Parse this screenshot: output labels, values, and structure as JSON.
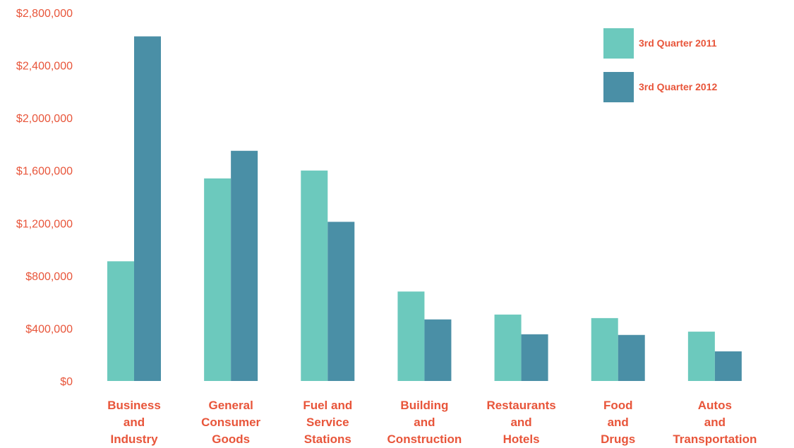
{
  "chart_data": {
    "type": "bar",
    "title": "",
    "xlabel": "",
    "ylabel": "",
    "ylim": [
      0,
      2800000
    ],
    "yticks": [
      0,
      400000,
      800000,
      1200000,
      1600000,
      2000000,
      2400000,
      2800000
    ],
    "ytick_labels": [
      "$0",
      "$400,000",
      "$800,000",
      "$1,200,000",
      "$1,600,000",
      "$2,000,000",
      "$2,400,000",
      "$2,800,000"
    ],
    "grid": false,
    "legend_position": "top-right",
    "categories": [
      [
        "Business",
        "and",
        "Industry"
      ],
      [
        "General",
        "Consumer",
        "Goods"
      ],
      [
        "Fuel and",
        "Service",
        "Stations"
      ],
      [
        "Building",
        "and",
        "Construction"
      ],
      [
        "Restaurants",
        "and",
        "Hotels"
      ],
      [
        "Food",
        "and",
        "Drugs"
      ],
      [
        "Autos",
        "and",
        "Transportation"
      ]
    ],
    "series": [
      {
        "name": "3rd Quarter 2011",
        "color": "#6cc9bd",
        "values": [
          910000,
          1540000,
          1600000,
          680000,
          505000,
          478000,
          375000
        ]
      },
      {
        "name": "3rd Quarter 2012",
        "color": "#4a8fa6",
        "values": [
          2620000,
          1750000,
          1210000,
          468000,
          355000,
          350000,
          225000
        ]
      }
    ],
    "text_color": "#e8553a"
  }
}
